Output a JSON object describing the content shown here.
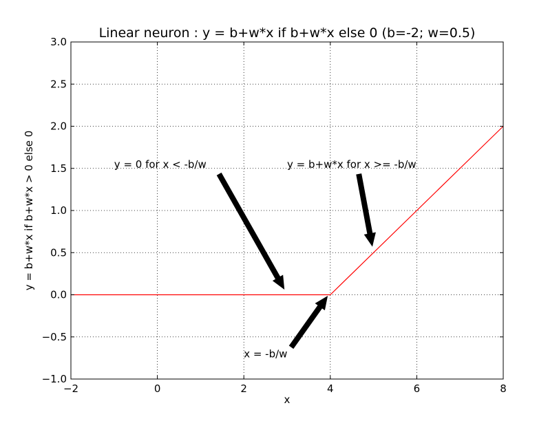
{
  "chart_data": {
    "type": "line",
    "title": "Linear neuron : y = b+w*x if b+w*x else 0 (b=-2; w=0.5)",
    "xlabel": "x",
    "ylabel": "y = b+w*x if b+w*x > 0 else 0",
    "xlim": [
      -2,
      8
    ],
    "ylim": [
      -1.0,
      3.0
    ],
    "xticks": [
      -2,
      0,
      2,
      4,
      6,
      8
    ],
    "xtick_labels": [
      "−2",
      "0",
      "2",
      "4",
      "6",
      "8"
    ],
    "yticks": [
      -1.0,
      -0.5,
      0.0,
      0.5,
      1.0,
      1.5,
      2.0,
      2.5,
      3.0
    ],
    "ytick_labels": [
      "−1.0",
      "−0.5",
      "0.0",
      "0.5",
      "1.0",
      "1.5",
      "2.0",
      "2.5",
      "3.0"
    ],
    "grid": true,
    "series": [
      {
        "color": "#ff0000",
        "x": [
          -2,
          4,
          8
        ],
        "y": [
          0,
          0,
          2
        ]
      }
    ],
    "annotations": [
      {
        "text": "y = 0 for x < -b/w",
        "text_x": -1,
        "text_y": 1.5,
        "arrow_from_x": 1.43,
        "arrow_from_y": 1.43,
        "arrow_to_x": 2.93,
        "arrow_to_y": 0.07
      },
      {
        "text": "y = b+w*x for x >= -b/w",
        "text_x": 3,
        "text_y": 1.5,
        "arrow_from_x": 4.66,
        "arrow_from_y": 1.43,
        "arrow_to_x": 4.97,
        "arrow_to_y": 0.58
      },
      {
        "text": "x = -b/w",
        "text_x": 2,
        "text_y": -0.75,
        "arrow_from_x": 3.1,
        "arrow_from_y": -0.62,
        "arrow_to_x": 3.93,
        "arrow_to_y": -0.02
      }
    ]
  }
}
